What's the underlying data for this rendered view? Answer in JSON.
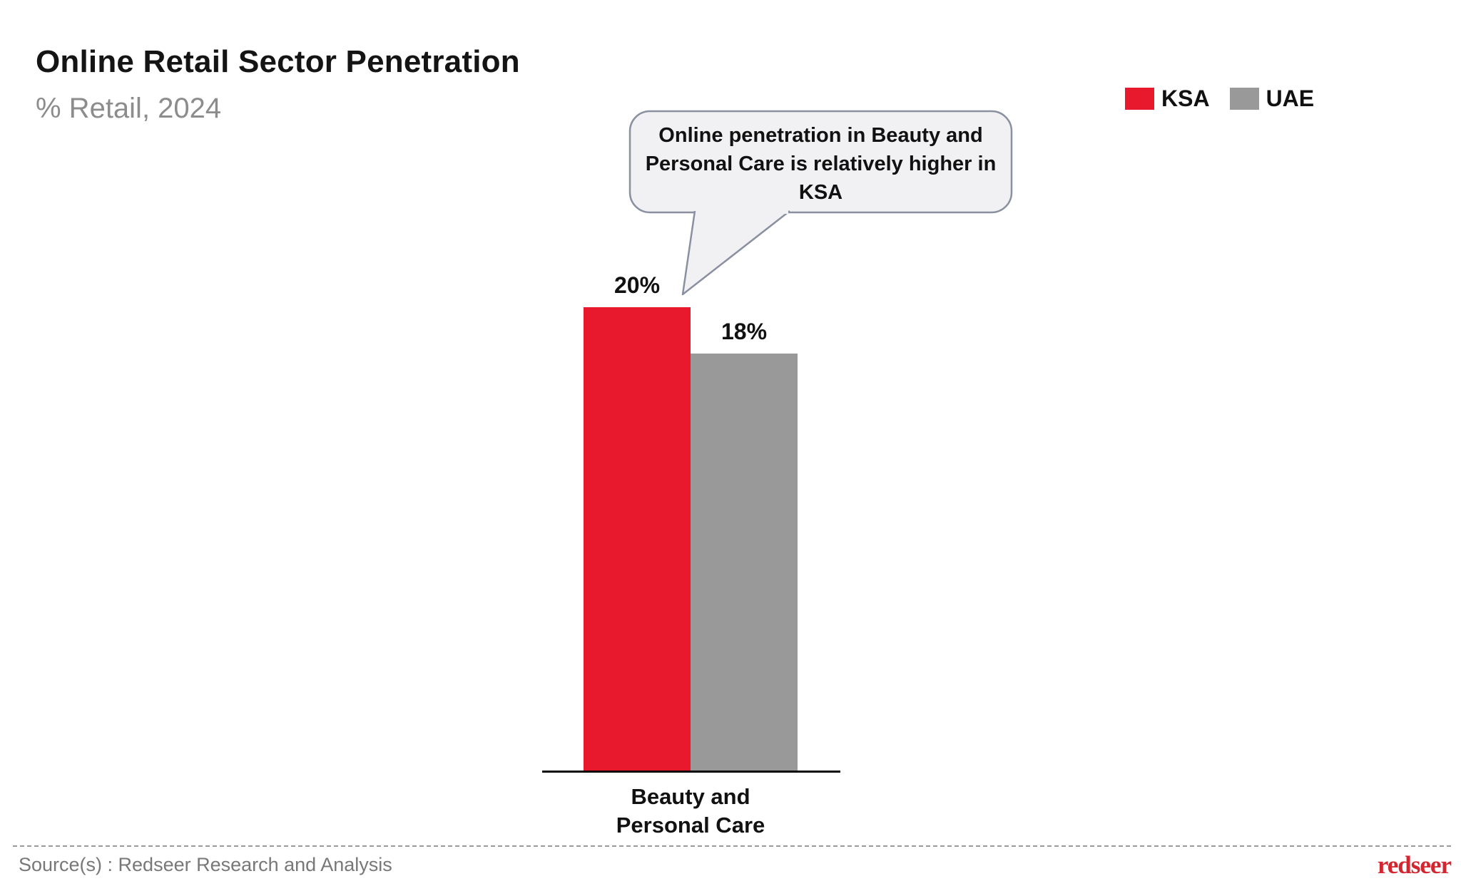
{
  "header": {
    "title": "Online Retail Sector Penetration",
    "subtitle": "% Retail, 2024"
  },
  "legend": [
    {
      "label": "KSA",
      "color": "#E8192D"
    },
    {
      "label": "UAE",
      "color": "#999999"
    }
  ],
  "callout": {
    "text_display": "Online penetration in Beauty and\nPersonal Care is relatively higher in\nKSA",
    "fill": "#F1F1F3",
    "border": "#8A90A0"
  },
  "chart_data": {
    "type": "bar",
    "title": "Online Retail Sector Penetration",
    "subtitle": "% Retail, 2024",
    "unit": "%",
    "categories": [
      "Beauty and Personal Care"
    ],
    "category_label_display": "Beauty and\nPersonal Care",
    "series": [
      {
        "name": "KSA",
        "values": [
          20
        ],
        "color": "#E8192D"
      },
      {
        "name": "UAE",
        "values": [
          18
        ],
        "color": "#999999"
      }
    ],
    "value_labels": [
      "20%",
      "18%"
    ],
    "ylim": [
      0,
      20
    ],
    "grid": false,
    "legend_position": "top-right",
    "annotation": "Online penetration in Beauty and Personal Care is relatively higher in KSA"
  },
  "footer": {
    "source": "Source(s) : Redseer Research and Analysis",
    "logo_text": "redseer",
    "logo_color": "#D22630"
  }
}
